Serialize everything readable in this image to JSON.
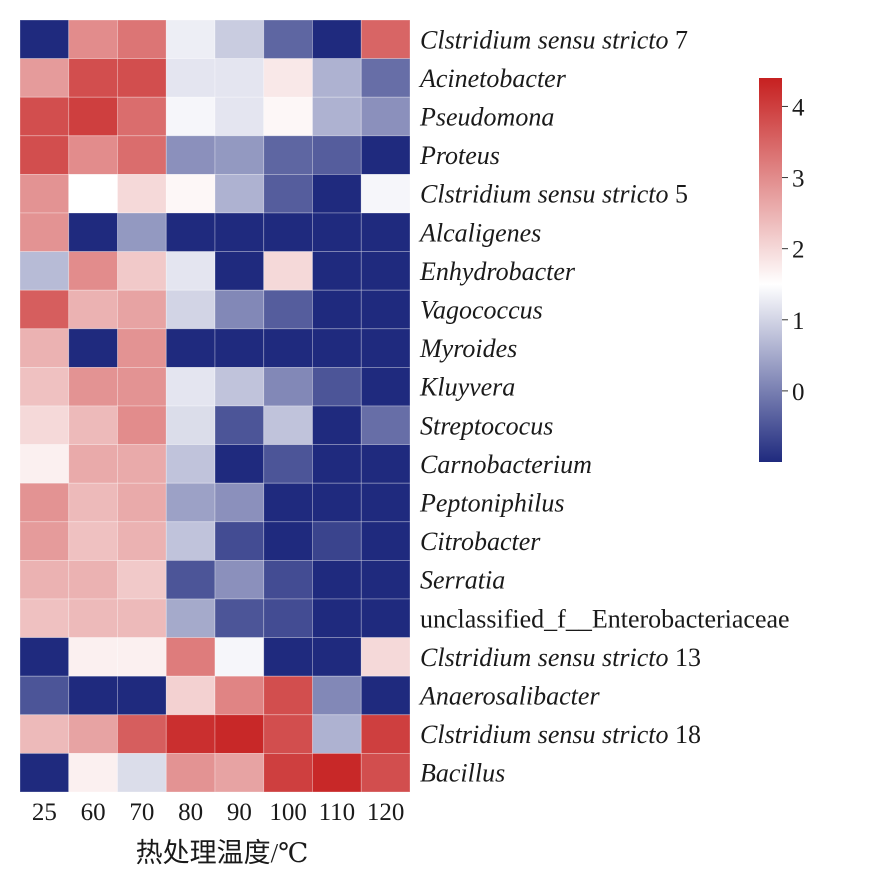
{
  "chart_data": {
    "type": "heatmap",
    "title": "",
    "xlabel": "热处理温度/℃",
    "ylabel": "",
    "columns": [
      "25",
      "60",
      "70",
      "80",
      "90",
      "100",
      "110",
      "120"
    ],
    "rows": [
      {
        "base": "Clstridium sensu stricto",
        "suffix": " 7",
        "italic_base": true
      },
      {
        "base": "Acinetobacter",
        "suffix": "",
        "italic_base": true
      },
      {
        "base": "Pseudomona",
        "suffix": "",
        "italic_base": true
      },
      {
        "base": "Proteus",
        "suffix": "",
        "italic_base": true
      },
      {
        "base": "Clstridium sensu stricto",
        "suffix": " 5",
        "italic_base": true
      },
      {
        "base": "Alcaligenes",
        "suffix": "",
        "italic_base": true
      },
      {
        "base": "Enhydrobacter",
        "suffix": "",
        "italic_base": true
      },
      {
        "base": "Vagococcus",
        "suffix": "",
        "italic_base": true
      },
      {
        "base": "Myroides",
        "suffix": "",
        "italic_base": true
      },
      {
        "base": "Kluyvera",
        "suffix": "",
        "italic_base": true
      },
      {
        "base": "Streptococus",
        "suffix": "",
        "italic_base": true
      },
      {
        "base": "Carnobacterium",
        "suffix": "",
        "italic_base": true
      },
      {
        "base": "Peptoniphilus",
        "suffix": "",
        "italic_base": true
      },
      {
        "base": "Citrobacter",
        "suffix": "",
        "italic_base": true
      },
      {
        "base": "Serratia",
        "suffix": "",
        "italic_base": true
      },
      {
        "base": "unclassified_f__Enterobacteriaceae",
        "suffix": "",
        "italic_base": false
      },
      {
        "base": "Clstridium sensu stricto",
        "suffix": " 13",
        "italic_base": true
      },
      {
        "base": "Anaerosalibacter",
        "suffix": "",
        "italic_base": true
      },
      {
        "base": "Clstridium sensu stricto",
        "suffix": " 18",
        "italic_base": true
      },
      {
        "base": "Bacillus",
        "suffix": "",
        "italic_base": true
      }
    ],
    "values": [
      [
        -1.0,
        3.0,
        3.3,
        1.3,
        0.9,
        -0.3,
        -1.0,
        3.5
      ],
      [
        2.8,
        3.8,
        3.8,
        1.2,
        1.2,
        1.8,
        0.6,
        -0.2
      ],
      [
        3.8,
        4.0,
        3.4,
        1.4,
        1.2,
        1.6,
        0.6,
        0.2
      ],
      [
        3.8,
        3.0,
        3.4,
        0.2,
        0.3,
        -0.3,
        -0.4,
        -1.0
      ],
      [
        2.9,
        1.5,
        2.0,
        1.6,
        0.6,
        -0.4,
        -1.0,
        1.4
      ],
      [
        2.9,
        -1.0,
        0.3,
        -1.0,
        -1.0,
        -1.0,
        -1.0,
        -1.0
      ],
      [
        0.7,
        3.0,
        2.2,
        1.2,
        -1.0,
        2.0,
        -1.0,
        -1.0
      ],
      [
        3.6,
        2.5,
        2.7,
        1.0,
        0.1,
        -0.4,
        -1.0,
        -1.0
      ],
      [
        2.5,
        -1.0,
        2.9,
        -1.0,
        -1.0,
        -1.0,
        -1.0,
        -1.0
      ],
      [
        2.3,
        2.9,
        2.9,
        1.2,
        0.8,
        0.1,
        -0.5,
        -1.0
      ],
      [
        2.0,
        2.4,
        3.0,
        1.1,
        -0.5,
        0.8,
        -1.0,
        -0.2
      ],
      [
        1.7,
        2.6,
        2.6,
        0.8,
        -1.0,
        -0.5,
        -1.0,
        -1.0
      ],
      [
        2.9,
        2.4,
        2.6,
        0.4,
        0.2,
        -1.0,
        -1.0,
        -1.0
      ],
      [
        2.8,
        2.3,
        2.5,
        0.8,
        -0.6,
        -1.0,
        -0.7,
        -1.0
      ],
      [
        2.5,
        2.5,
        2.2,
        -0.5,
        0.2,
        -0.6,
        -1.0,
        -1.0
      ],
      [
        2.3,
        2.4,
        2.4,
        0.5,
        -0.5,
        -0.6,
        -1.0,
        -1.0
      ],
      [
        -1.0,
        1.7,
        1.7,
        3.2,
        1.4,
        -1.0,
        -1.0,
        2.0
      ],
      [
        -0.5,
        -1.0,
        -1.0,
        2.1,
        3.1,
        3.8,
        0.1,
        -1.0
      ],
      [
        2.4,
        2.7,
        3.6,
        4.2,
        4.3,
        3.8,
        0.6,
        4.0
      ],
      [
        -1.0,
        1.7,
        1.1,
        2.9,
        2.7,
        4.0,
        4.3,
        3.8
      ]
    ],
    "colorbar": {
      "range": [
        -1.0,
        4.4
      ],
      "ticks": [
        "0",
        "1",
        "2",
        "3",
        "4"
      ],
      "tick_values": [
        0,
        1,
        2,
        3,
        4
      ],
      "colors": [
        "#1f2a7e",
        "#ffffff",
        "#c62020"
      ],
      "placement": "right"
    },
    "grid": false
  }
}
